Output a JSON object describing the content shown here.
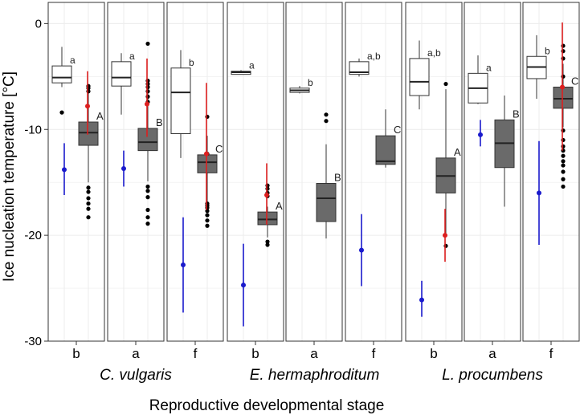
{
  "colors": {
    "mean_blue": "#1a1acc",
    "mean_red": "#dd1f1f",
    "flower_fill": "#6a6a6a",
    "bud_fill": "#ffffff",
    "outlier": "#000000",
    "grid": "#ececec"
  },
  "chart_data": {
    "type": "boxplot",
    "ylabel": "Ice nucleation temperature [°C]",
    "xlabel": "Reproductive developmental stage",
    "ylim": [
      -30,
      2
    ],
    "yticks": [
      0,
      -10,
      -20,
      -30
    ],
    "yticklabels": [
      "0",
      "-10",
      "-20",
      "-30"
    ],
    "grid": true,
    "species": [
      {
        "name": "C. vulgaris",
        "panels": [
          0,
          1,
          2
        ]
      },
      {
        "name": "E. hermaphroditum",
        "panels": [
          3,
          4,
          5
        ]
      },
      {
        "name": "L. procumbens",
        "panels": [
          6,
          7,
          8
        ]
      }
    ],
    "panels": [
      {
        "stage": "b",
        "blue": {
          "mean": -13.8,
          "low": -16.2,
          "high": -11.3
        },
        "bud": {
          "q1": -5.6,
          "median": -5.1,
          "q3": -4.0,
          "wlow": -6.0,
          "whigh": -2.2,
          "letter": "a",
          "outliers": [
            -8.4
          ]
        },
        "red": {
          "mean": -7.8,
          "low": -10.5,
          "high": -4.5
        },
        "flower": {
          "q1": -11.5,
          "median": -10.3,
          "q3": -9.3,
          "wlow": -15.0,
          "whigh": -6.3,
          "letter": "A",
          "outliers": [
            -5.9,
            -6.1,
            -6.4,
            -15.5,
            -15.9,
            -16.5,
            -17.0,
            -17.5,
            -18.3
          ]
        }
      },
      {
        "stage": "a",
        "blue": {
          "mean": -13.7,
          "low": -15.4,
          "high": -12.0
        },
        "bud": {
          "q1": -5.9,
          "median": -5.1,
          "q3": -3.6,
          "wlow": -8.6,
          "whigh": -2.8,
          "letter": "a",
          "outliers": []
        },
        "red": {
          "mean": -7.6,
          "low": -10.7,
          "high": -3.3
        },
        "flower": {
          "q1": -12.0,
          "median": -11.2,
          "q3": -9.9,
          "wlow": -14.9,
          "whigh": -5.8,
          "letter": "B",
          "outliers": [
            -1.9,
            -5.4,
            -5.7,
            -6.0,
            -6.4,
            -6.9,
            -7.4,
            -15.4,
            -15.8,
            -16.4,
            -17.6,
            -18.3,
            -18.9
          ]
        }
      },
      {
        "stage": "f",
        "blue": {
          "mean": -22.8,
          "low": -27.3,
          "high": -18.3
        },
        "bud": {
          "q1": -10.4,
          "median": -6.5,
          "q3": -4.2,
          "wlow": -12.7,
          "whigh": -2.5,
          "letter": "b",
          "outliers": []
        },
        "red": {
          "mean": -12.3,
          "low": -17.6,
          "high": -5.6
        },
        "flower": {
          "q1": -14.1,
          "median": -13.1,
          "q3": -12.4,
          "wlow": -17.1,
          "whigh": -10.6,
          "letter": "C",
          "outliers": [
            -8.8,
            -12.3,
            -17.0,
            -17.2,
            -17.4,
            -17.7,
            -18.1,
            -18.6,
            -19.1
          ]
        }
      },
      {
        "stage": "b",
        "blue": {
          "mean": -24.7,
          "low": -28.6,
          "high": -20.8
        },
        "bud": {
          "q1": -4.8,
          "median": -4.6,
          "q3": -4.5,
          "wlow": -4.8,
          "whigh": -4.4,
          "letter": "a",
          "outliers": []
        },
        "red": {
          "mean": -16.2,
          "low": -19.0,
          "high": -13.2
        },
        "flower": {
          "q1": -19.0,
          "median": -18.5,
          "q3": -17.8,
          "wlow": -20.2,
          "whigh": -17.3,
          "letter": "A",
          "outliers": [
            -15.3,
            -15.6,
            -16.0,
            -16.3,
            -20.6,
            -20.9
          ]
        }
      },
      {
        "stage": "a",
        "blue": null,
        "bud": {
          "q1": -6.5,
          "median": -6.3,
          "q3": -6.1,
          "wlow": -6.6,
          "whigh": -5.9,
          "letter": "b",
          "outliers": []
        },
        "red": null,
        "flower": {
          "q1": -18.7,
          "median": -16.5,
          "q3": -15.1,
          "wlow": -20.3,
          "whigh": -11.4,
          "letter": "B",
          "outliers": [
            -8.6,
            -9.2
          ]
        }
      },
      {
        "stage": "f",
        "blue": {
          "mean": -21.4,
          "low": -24.8,
          "high": -18.0
        },
        "bud": {
          "q1": -4.8,
          "median": -4.6,
          "q3": -3.6,
          "wlow": -5.0,
          "whigh": -3.3,
          "letter": "a,b",
          "outliers": []
        },
        "red": null,
        "flower": {
          "q1": -13.3,
          "median": -13.0,
          "q3": -10.6,
          "wlow": -13.6,
          "whigh": -8.1,
          "letter": "C",
          "outliers": []
        }
      },
      {
        "stage": "b",
        "blue": {
          "mean": -26.1,
          "low": -27.7,
          "high": -24.3
        },
        "bud": {
          "q1": -6.8,
          "median": -5.5,
          "q3": -3.3,
          "wlow": -8.1,
          "whigh": -1.6,
          "letter": "a,b",
          "outliers": []
        },
        "red": {
          "mean": -20.0,
          "low": -22.5,
          "high": -17.5
        },
        "flower": {
          "q1": -16.0,
          "median": -14.4,
          "q3": -12.7,
          "wlow": -19.8,
          "whigh": -6.2,
          "letter": "A",
          "outliers": [
            -5.7,
            -21.0
          ]
        }
      },
      {
        "stage": "a",
        "blue": {
          "mean": -10.5,
          "low": -11.6,
          "high": -9.1
        },
        "bud": {
          "q1": -7.5,
          "median": -6.1,
          "q3": -4.7,
          "wlow": -7.6,
          "whigh": -3.0,
          "letter": "a",
          "outliers": []
        },
        "red": null,
        "flower": {
          "q1": -13.6,
          "median": -11.3,
          "q3": -9.1,
          "wlow": -17.3,
          "whigh": -6.8,
          "letter": "B",
          "outliers": []
        }
      },
      {
        "stage": "f",
        "blue": {
          "mean": -16.0,
          "low": -20.9,
          "high": -11.1
        },
        "bud": {
          "q1": -5.2,
          "median": -4.1,
          "q3": -3.1,
          "wlow": -7.1,
          "whigh": -1.1,
          "letter": "b",
          "outliers": []
        },
        "red": {
          "mean": -6.0,
          "low": -12.0,
          "high": 0.1
        },
        "flower": {
          "q1": -8.0,
          "median": -7.1,
          "q3": -6.0,
          "wlow": -9.8,
          "whigh": -3.8,
          "letter": "C",
          "outliers": [
            -2.1,
            -2.6,
            -3.3,
            -5.0,
            -10.1,
            -11.0,
            -11.6,
            -12.0,
            -12.5,
            -13.0,
            -13.4,
            -14.0,
            -14.7,
            -15.4
          ]
        }
      }
    ]
  }
}
